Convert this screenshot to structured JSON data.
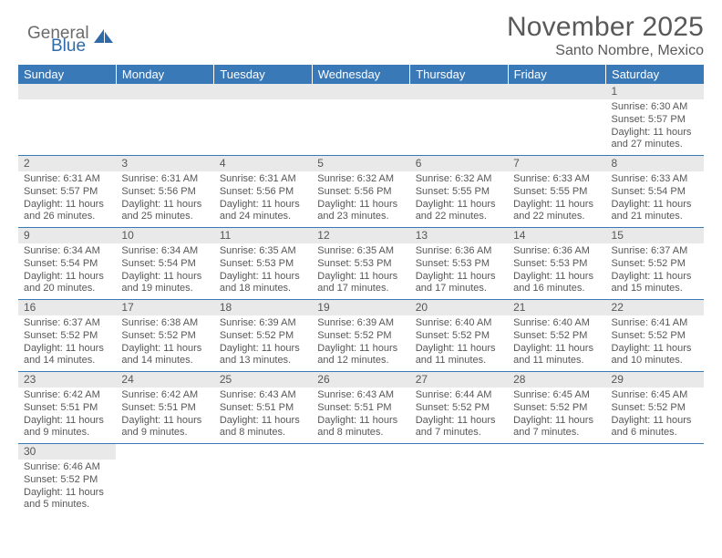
{
  "logo": {
    "general": "General",
    "blue": "Blue"
  },
  "title": "November 2025",
  "location": "Santo Nombre, Mexico",
  "day_headers": [
    "Sunday",
    "Monday",
    "Tuesday",
    "Wednesday",
    "Thursday",
    "Friday",
    "Saturday"
  ],
  "colors": {
    "header_bg": "#3a79b7",
    "header_text": "#ffffff",
    "daynum_bg": "#e9e9e9",
    "cell_border": "#3a79b7",
    "text": "#575757",
    "logo_gray": "#6b6b6b",
    "logo_blue": "#2e6ba8",
    "page_bg": "#ffffff"
  },
  "weeks": [
    [
      null,
      null,
      null,
      null,
      null,
      null,
      {
        "n": "1",
        "sr": "Sunrise: 6:30 AM",
        "ss": "Sunset: 5:57 PM",
        "dl": "Daylight: 11 hours and 27 minutes."
      }
    ],
    [
      {
        "n": "2",
        "sr": "Sunrise: 6:31 AM",
        "ss": "Sunset: 5:57 PM",
        "dl": "Daylight: 11 hours and 26 minutes."
      },
      {
        "n": "3",
        "sr": "Sunrise: 6:31 AM",
        "ss": "Sunset: 5:56 PM",
        "dl": "Daylight: 11 hours and 25 minutes."
      },
      {
        "n": "4",
        "sr": "Sunrise: 6:31 AM",
        "ss": "Sunset: 5:56 PM",
        "dl": "Daylight: 11 hours and 24 minutes."
      },
      {
        "n": "5",
        "sr": "Sunrise: 6:32 AM",
        "ss": "Sunset: 5:56 PM",
        "dl": "Daylight: 11 hours and 23 minutes."
      },
      {
        "n": "6",
        "sr": "Sunrise: 6:32 AM",
        "ss": "Sunset: 5:55 PM",
        "dl": "Daylight: 11 hours and 22 minutes."
      },
      {
        "n": "7",
        "sr": "Sunrise: 6:33 AM",
        "ss": "Sunset: 5:55 PM",
        "dl": "Daylight: 11 hours and 22 minutes."
      },
      {
        "n": "8",
        "sr": "Sunrise: 6:33 AM",
        "ss": "Sunset: 5:54 PM",
        "dl": "Daylight: 11 hours and 21 minutes."
      }
    ],
    [
      {
        "n": "9",
        "sr": "Sunrise: 6:34 AM",
        "ss": "Sunset: 5:54 PM",
        "dl": "Daylight: 11 hours and 20 minutes."
      },
      {
        "n": "10",
        "sr": "Sunrise: 6:34 AM",
        "ss": "Sunset: 5:54 PM",
        "dl": "Daylight: 11 hours and 19 minutes."
      },
      {
        "n": "11",
        "sr": "Sunrise: 6:35 AM",
        "ss": "Sunset: 5:53 PM",
        "dl": "Daylight: 11 hours and 18 minutes."
      },
      {
        "n": "12",
        "sr": "Sunrise: 6:35 AM",
        "ss": "Sunset: 5:53 PM",
        "dl": "Daylight: 11 hours and 17 minutes."
      },
      {
        "n": "13",
        "sr": "Sunrise: 6:36 AM",
        "ss": "Sunset: 5:53 PM",
        "dl": "Daylight: 11 hours and 17 minutes."
      },
      {
        "n": "14",
        "sr": "Sunrise: 6:36 AM",
        "ss": "Sunset: 5:53 PM",
        "dl": "Daylight: 11 hours and 16 minutes."
      },
      {
        "n": "15",
        "sr": "Sunrise: 6:37 AM",
        "ss": "Sunset: 5:52 PM",
        "dl": "Daylight: 11 hours and 15 minutes."
      }
    ],
    [
      {
        "n": "16",
        "sr": "Sunrise: 6:37 AM",
        "ss": "Sunset: 5:52 PM",
        "dl": "Daylight: 11 hours and 14 minutes."
      },
      {
        "n": "17",
        "sr": "Sunrise: 6:38 AM",
        "ss": "Sunset: 5:52 PM",
        "dl": "Daylight: 11 hours and 14 minutes."
      },
      {
        "n": "18",
        "sr": "Sunrise: 6:39 AM",
        "ss": "Sunset: 5:52 PM",
        "dl": "Daylight: 11 hours and 13 minutes."
      },
      {
        "n": "19",
        "sr": "Sunrise: 6:39 AM",
        "ss": "Sunset: 5:52 PM",
        "dl": "Daylight: 11 hours and 12 minutes."
      },
      {
        "n": "20",
        "sr": "Sunrise: 6:40 AM",
        "ss": "Sunset: 5:52 PM",
        "dl": "Daylight: 11 hours and 11 minutes."
      },
      {
        "n": "21",
        "sr": "Sunrise: 6:40 AM",
        "ss": "Sunset: 5:52 PM",
        "dl": "Daylight: 11 hours and 11 minutes."
      },
      {
        "n": "22",
        "sr": "Sunrise: 6:41 AM",
        "ss": "Sunset: 5:52 PM",
        "dl": "Daylight: 11 hours and 10 minutes."
      }
    ],
    [
      {
        "n": "23",
        "sr": "Sunrise: 6:42 AM",
        "ss": "Sunset: 5:51 PM",
        "dl": "Daylight: 11 hours and 9 minutes."
      },
      {
        "n": "24",
        "sr": "Sunrise: 6:42 AM",
        "ss": "Sunset: 5:51 PM",
        "dl": "Daylight: 11 hours and 9 minutes."
      },
      {
        "n": "25",
        "sr": "Sunrise: 6:43 AM",
        "ss": "Sunset: 5:51 PM",
        "dl": "Daylight: 11 hours and 8 minutes."
      },
      {
        "n": "26",
        "sr": "Sunrise: 6:43 AM",
        "ss": "Sunset: 5:51 PM",
        "dl": "Daylight: 11 hours and 8 minutes."
      },
      {
        "n": "27",
        "sr": "Sunrise: 6:44 AM",
        "ss": "Sunset: 5:52 PM",
        "dl": "Daylight: 11 hours and 7 minutes."
      },
      {
        "n": "28",
        "sr": "Sunrise: 6:45 AM",
        "ss": "Sunset: 5:52 PM",
        "dl": "Daylight: 11 hours and 7 minutes."
      },
      {
        "n": "29",
        "sr": "Sunrise: 6:45 AM",
        "ss": "Sunset: 5:52 PM",
        "dl": "Daylight: 11 hours and 6 minutes."
      }
    ],
    [
      {
        "n": "30",
        "sr": "Sunrise: 6:46 AM",
        "ss": "Sunset: 5:52 PM",
        "dl": "Daylight: 11 hours and 5 minutes."
      },
      null,
      null,
      null,
      null,
      null,
      null
    ]
  ]
}
